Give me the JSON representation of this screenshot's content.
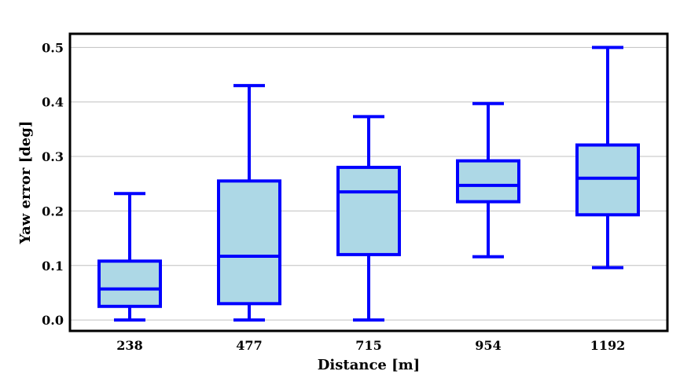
{
  "chart_data": {
    "type": "box",
    "xlabel": "Distance [m]",
    "ylabel": "Yaw error [deg]",
    "categories": [
      "238",
      "477",
      "715",
      "954",
      "1192"
    ],
    "ylim": [
      -0.02,
      0.525
    ],
    "yticks": [
      "0.0",
      "0.1",
      "0.2",
      "0.3",
      "0.4",
      "0.5"
    ],
    "grid": "horizontal",
    "boxes": [
      {
        "category": "238",
        "whisker_low": 0.0,
        "q1": 0.025,
        "median": 0.057,
        "q3": 0.108,
        "whisker_high": 0.232
      },
      {
        "category": "477",
        "whisker_low": 0.0,
        "q1": 0.03,
        "median": 0.117,
        "q3": 0.255,
        "whisker_high": 0.43
      },
      {
        "category": "715",
        "whisker_low": 0.0,
        "q1": 0.12,
        "median": 0.235,
        "q3": 0.28,
        "whisker_high": 0.373
      },
      {
        "category": "954",
        "whisker_low": 0.116,
        "q1": 0.217,
        "median": 0.247,
        "q3": 0.292,
        "whisker_high": 0.397
      },
      {
        "category": "1192",
        "whisker_low": 0.096,
        "q1": 0.193,
        "median": 0.26,
        "q3": 0.321,
        "whisker_high": 0.5
      }
    ],
    "colors": {
      "box_fill": "#add8e6",
      "box_edge": "#0000ff",
      "grid": "#c0c0c0",
      "frame": "#000000"
    }
  }
}
